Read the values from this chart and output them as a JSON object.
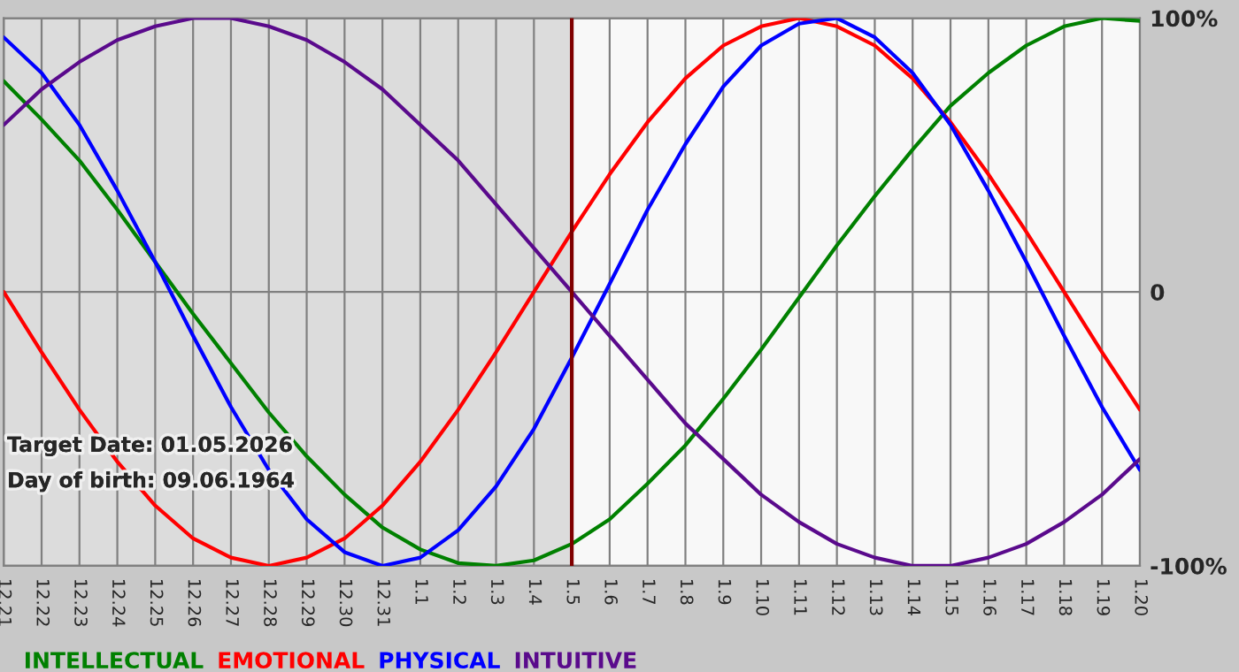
{
  "chart_data": {
    "type": "line",
    "categories": [
      "12.21",
      "12.22",
      "12.23",
      "12.24",
      "12.25",
      "12.26",
      "12.27",
      "12.28",
      "12.29",
      "12.30",
      "12.31",
      "1.1",
      "1.2",
      "1.3",
      "1.4",
      "1.5",
      "1.6",
      "1.7",
      "1.8",
      "1.9",
      "1.10",
      "1.11",
      "1.12",
      "1.13",
      "1.14",
      "1.15",
      "1.16",
      "1.17",
      "1.18",
      "1.19",
      "1.20"
    ],
    "series": [
      {
        "name": "INTELLECTUAL",
        "color": "#008000",
        "values": [
          77,
          63,
          48,
          30,
          11,
          -8,
          -26,
          -44,
          -60,
          -74,
          -86,
          -94,
          -99,
          -100,
          -98,
          -92,
          -83,
          -70,
          -56,
          -39,
          -21,
          -2,
          17,
          35,
          52,
          68,
          80,
          90,
          97,
          100,
          99
        ]
      },
      {
        "name": "EMOTIONAL",
        "color": "#ff0000",
        "values": [
          0,
          -22,
          -43,
          -62,
          -78,
          -90,
          -97,
          -100,
          -97,
          -90,
          -78,
          -62,
          -43,
          -22,
          0,
          22,
          43,
          62,
          78,
          90,
          97,
          100,
          97,
          90,
          78,
          62,
          43,
          22,
          0,
          -22,
          -43
        ]
      },
      {
        "name": "PHYSICAL",
        "color": "#0000ff",
        "values": [
          93,
          80,
          61,
          37,
          11,
          -16,
          -42,
          -65,
          -83,
          -95,
          -100,
          -97,
          -87,
          -71,
          -50,
          -24,
          3,
          30,
          54,
          75,
          90,
          98,
          100,
          93,
          80,
          61,
          37,
          11,
          -16,
          -42,
          -65
        ]
      },
      {
        "name": "INTUITIVE",
        "color": "#5a0a8c",
        "values": [
          61,
          74,
          84,
          92,
          97,
          100,
          100,
          97,
          92,
          84,
          74,
          61,
          48,
          32,
          16,
          0,
          -16,
          -32,
          -48,
          -61,
          -74,
          -84,
          -92,
          -97,
          -100,
          -100,
          -97,
          -92,
          -84,
          -74,
          -61
        ]
      }
    ],
    "ylim": [
      -100,
      100
    ],
    "yticks": [
      {
        "value": 100,
        "label": "100%"
      },
      0,
      {
        "value": -100,
        "label": "-100%"
      }
    ],
    "grid": true,
    "legend": "bottom",
    "line_style": "solid",
    "ref_lines": [
      {
        "axis": "x",
        "value": "1.5",
        "color": "#800000"
      }
    ],
    "bands": [
      {
        "axis": "x",
        "from": "12.21",
        "to": "1.5",
        "color": "#dcdcdc"
      }
    ],
    "annotations": [
      "Target Date: 01.05.2026",
      "Day of birth: 09.06.1964"
    ]
  }
}
